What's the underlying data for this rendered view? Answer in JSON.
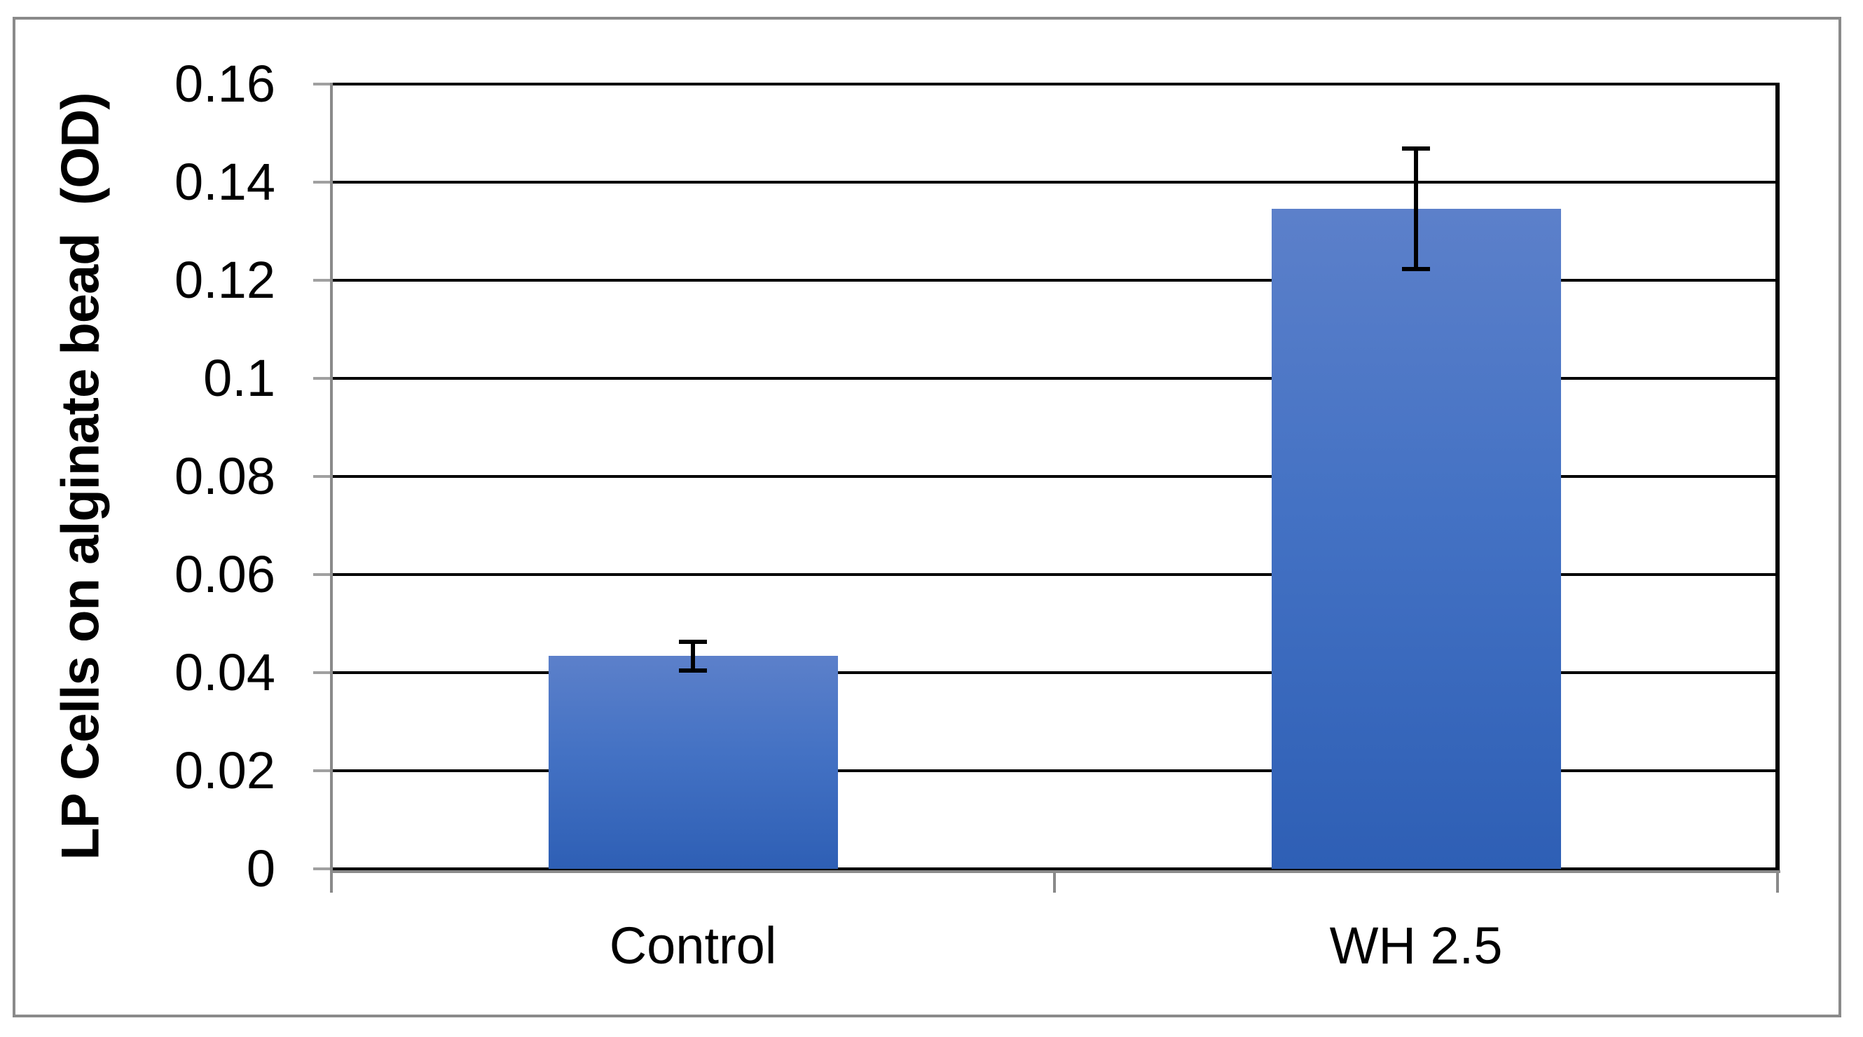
{
  "chart_data": {
    "type": "bar",
    "title": "",
    "categories": [
      "Control",
      "WH 2.5"
    ],
    "values": [
      0.0434,
      0.1346
    ],
    "errors": [
      0.0028,
      0.0121
    ],
    "series": [
      {
        "name": "LP Cells",
        "values": [
          0.0434,
          0.1346
        ],
        "errors": [
          0.0028,
          0.0121
        ]
      }
    ],
    "xlabel": "",
    "ylabel": "LP Cells on alginate bead  (OD)",
    "ylim": [
      0,
      0.16
    ],
    "ytick_interval": 0.02,
    "yticks": [
      0,
      0.02,
      0.04,
      0.06,
      0.08,
      0.1,
      0.12,
      0.14,
      0.16
    ],
    "ytick_labels": [
      "0",
      "0.02",
      "0.04",
      "0.06",
      "0.08",
      "0.1",
      "0.12",
      "0.14",
      "0.16"
    ],
    "grid": true,
    "legend_position": "none",
    "colors": {
      "bar_gradient_top": "#5C80CA",
      "bar_gradient_mid": "#4472C4",
      "bar_gradient_bottom": "#2E5FB5",
      "gridline": "#000000",
      "axis_line": "#8a8a8a",
      "tick_mark": "#a0a0a0",
      "error_bar": "#000000",
      "frame_border": "#8a8a8a",
      "text": "#000000"
    }
  }
}
